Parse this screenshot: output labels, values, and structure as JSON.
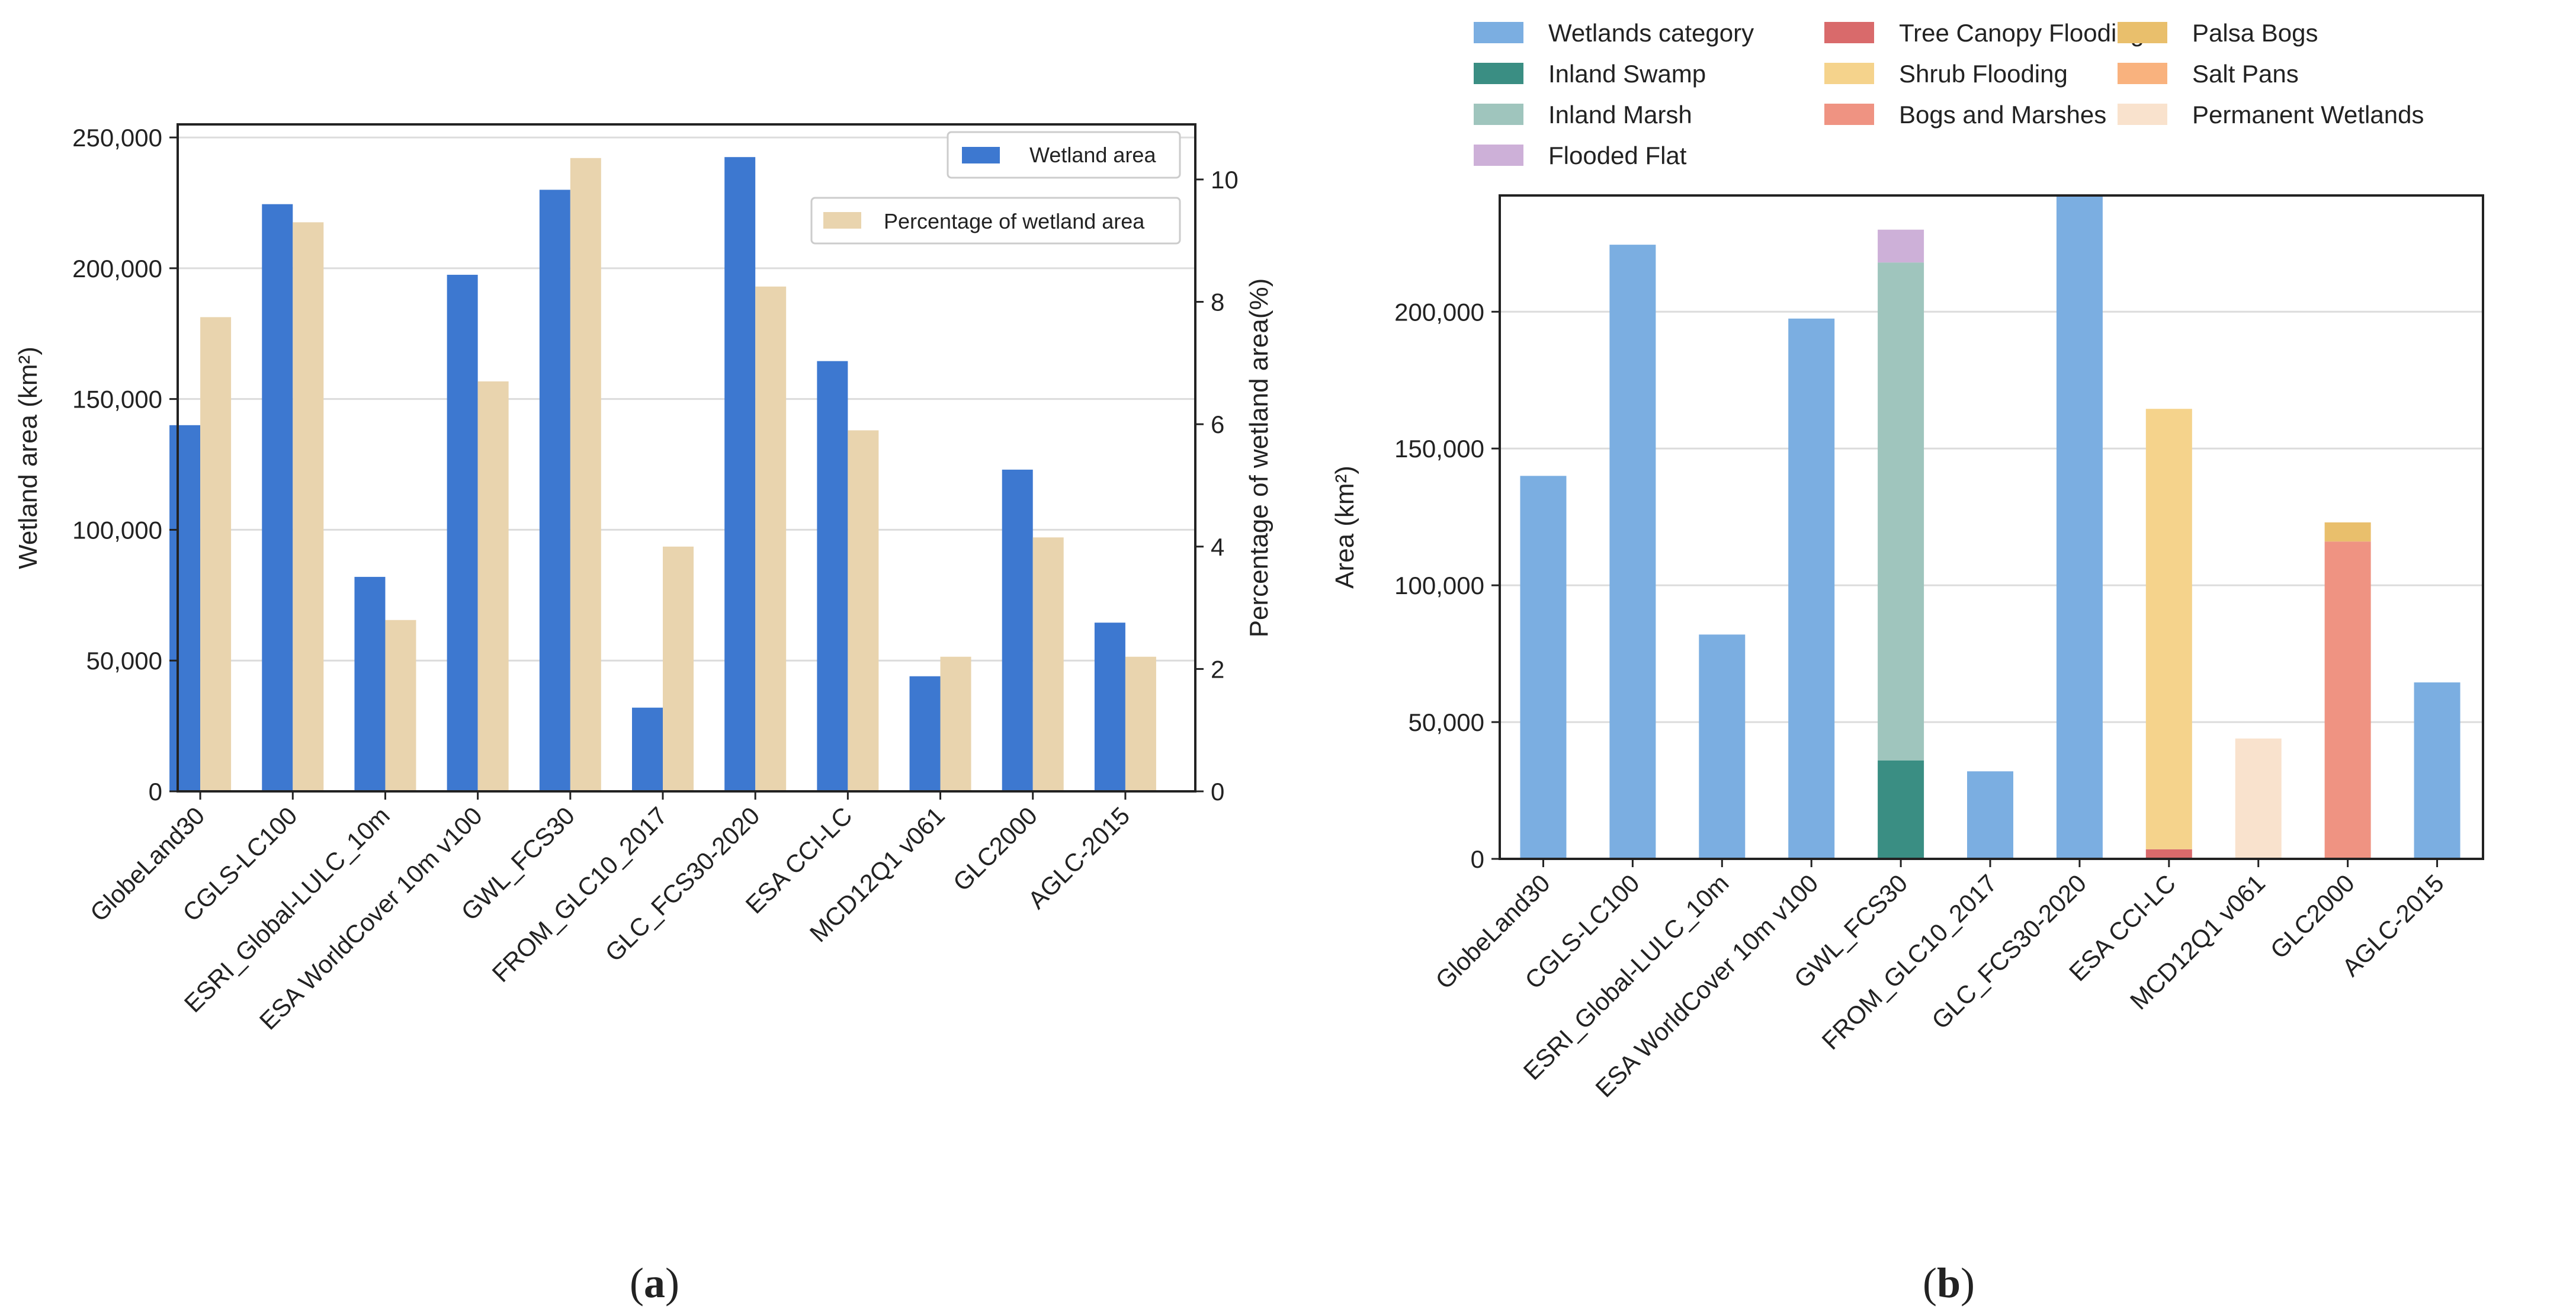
{
  "chart_data": [
    {
      "type": "bar",
      "panel_label": "a",
      "categories": [
        "GlobeLand30",
        "CGLS-LC100",
        "ESRI_Global-LULC_10m",
        "ESA WorldCover 10m v100",
        "GWL_FCS30",
        "FROM_GLC10_2017",
        "GLC_FCS30-2020",
        "ESA CCI-LC",
        "MCD12Q1 v061",
        "GLC2000",
        "AGLC-2015"
      ],
      "series": [
        {
          "name": "Wetland area",
          "axis": "left",
          "color": "#3d78d0",
          "values": [
            140000,
            224500,
            82000,
            197500,
            230000,
            32000,
            242500,
            164500,
            44000,
            123000,
            64500
          ]
        },
        {
          "name": "Percentage of wetland area",
          "axis": "right",
          "color": "#e9d4ae",
          "values": [
            7.75,
            9.3,
            2.8,
            6.7,
            10.35,
            4.0,
            8.25,
            5.9,
            2.2,
            4.15,
            2.2
          ]
        }
      ],
      "ylabel": "Wetland area (km²)",
      "ylabel_right": "Percentage of wetland area(%)",
      "ylim": [
        0,
        255000
      ],
      "ylim_right": [
        0,
        10.9
      ],
      "yticks": [
        0,
        50000,
        100000,
        150000,
        200000,
        250000
      ],
      "ytick_labels": [
        "0",
        "50,000",
        "100,000",
        "150,000",
        "200,000",
        "250,000"
      ],
      "yticks_right": [
        0,
        2,
        4,
        6,
        8,
        10
      ],
      "ytick_labels_right": [
        "0",
        "2",
        "4",
        "6",
        "8",
        "10"
      ],
      "grid": true,
      "legend": [
        {
          "label": "Wetland area",
          "color": "#3d78d0"
        },
        {
          "label": "Percentage of wetland area",
          "color": "#e9d4ae"
        }
      ]
    },
    {
      "type": "bar",
      "stacked": true,
      "panel_label": "b",
      "categories": [
        "GlobeLand30",
        "CGLS-LC100",
        "ESRI_Global-LULC_10m",
        "ESA WorldCover 10m v100",
        "GWL_FCS30",
        "FROM_GLC10_2017",
        "GLC_FCS30-2020",
        "ESA CCI-LC",
        "MCD12Q1 v061",
        "GLC2000",
        "AGLC-2015"
      ],
      "series": [
        {
          "name": "Wetlands category",
          "color": "#7baee1",
          "values": [
            140000,
            224500,
            82000,
            197500,
            0,
            32000,
            242500,
            0,
            0,
            0,
            64500
          ]
        },
        {
          "name": "Inland Swamp",
          "color": "#3a8e83",
          "values": [
            0,
            0,
            0,
            0,
            36000,
            0,
            0,
            0,
            0,
            0,
            0
          ]
        },
        {
          "name": "Inland Marsh",
          "color": "#9fc5bd",
          "values": [
            0,
            0,
            0,
            0,
            182000,
            0,
            0,
            0,
            0,
            0,
            0
          ]
        },
        {
          "name": "Flooded Flat",
          "color": "#cdb0d8",
          "values": [
            0,
            0,
            0,
            0,
            12000,
            0,
            0,
            0,
            0,
            0,
            0
          ]
        },
        {
          "name": "Tree Canopy Flooding",
          "color": "#d96a6b",
          "values": [
            0,
            0,
            0,
            0,
            0,
            0,
            0,
            3500,
            0,
            0,
            0
          ]
        },
        {
          "name": "Shrub Flooding",
          "color": "#f5d38c",
          "values": [
            0,
            0,
            0,
            0,
            0,
            0,
            0,
            161000,
            0,
            0,
            0
          ]
        },
        {
          "name": "Bogs and Marshes",
          "color": "#ef9382",
          "values": [
            0,
            0,
            0,
            0,
            0,
            0,
            0,
            0,
            0,
            116000,
            0
          ]
        },
        {
          "name": "Palsa Bogs",
          "color": "#e9bf6c",
          "values": [
            0,
            0,
            0,
            0,
            0,
            0,
            0,
            0,
            0,
            7000,
            0
          ]
        },
        {
          "name": "Salt Pans",
          "color": "#f9b27e",
          "values": [
            0,
            0,
            0,
            0,
            0,
            0,
            0,
            0,
            0,
            0,
            0
          ]
        },
        {
          "name": "Permanent Wetlands",
          "color": "#f9e2cd",
          "values": [
            0,
            0,
            0,
            0,
            0,
            0,
            0,
            0,
            44000,
            0,
            0
          ]
        }
      ],
      "ylabel": "Area (km²)",
      "ylim": [
        0,
        242500
      ],
      "yticks": [
        0,
        50000,
        100000,
        150000,
        200000
      ],
      "ytick_labels": [
        "0",
        "50,000",
        "100,000",
        "150,000",
        "200,000"
      ],
      "grid": true
    }
  ]
}
